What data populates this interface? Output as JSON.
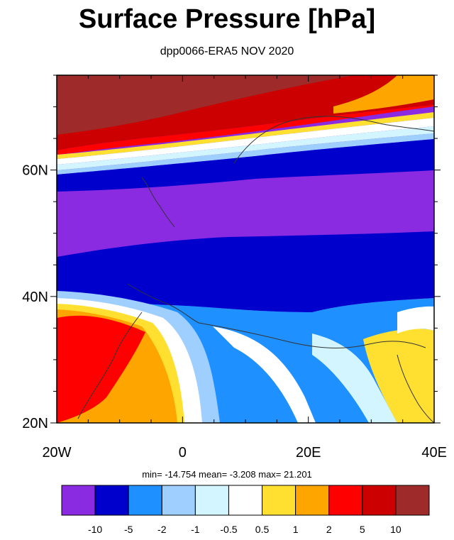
{
  "title": "Surface Pressure [hPa]",
  "subtitle": "dpp0066-ERA5 NOV 2020",
  "stats": "min= -14.754  mean=  -3.208  max=  21.201",
  "map": {
    "lon_range": [
      -20,
      40
    ],
    "lat_range": [
      20,
      75
    ],
    "lon_ticks": [
      {
        "value": -20,
        "label": "20W"
      },
      {
        "value": 0,
        "label": "0"
      },
      {
        "value": 20,
        "label": "20E"
      },
      {
        "value": 40,
        "label": "40E"
      }
    ],
    "lat_ticks": [
      {
        "value": 20,
        "label": "20N"
      },
      {
        "value": 40,
        "label": "40N"
      },
      {
        "value": 60,
        "label": "60N"
      }
    ]
  },
  "colorbar": {
    "colors": [
      "#8a2be2",
      "#0000cd",
      "#1e90ff",
      "#9ecfff",
      "#d2f5ff",
      "#ffffff",
      "#ffe030",
      "#ffa500",
      "#ff0000",
      "#cc0000",
      "#9e2a2a"
    ],
    "labels": [
      "-10",
      "-5",
      "-2",
      "-1",
      "-0.5",
      "0.5",
      "1",
      "2",
      "5",
      "10"
    ]
  }
}
